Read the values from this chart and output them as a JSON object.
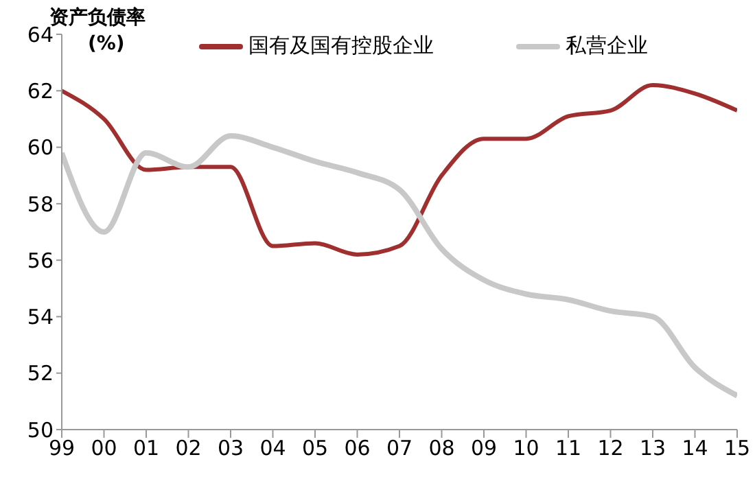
{
  "chart_data": {
    "type": "line",
    "ylabel": "资产负债率\n(%)",
    "categories": [
      "99",
      "00",
      "01",
      "02",
      "03",
      "04",
      "05",
      "06",
      "07",
      "08",
      "09",
      "10",
      "11",
      "12",
      "13",
      "14",
      "15"
    ],
    "series": [
      {
        "name": "国有及国有控股企业",
        "color": "#a0302f",
        "values": [
          62.0,
          61.0,
          59.2,
          59.3,
          59.3,
          56.5,
          56.6,
          56.2,
          56.5,
          59.0,
          60.3,
          60.3,
          61.1,
          61.3,
          62.2,
          61.9,
          61.3
        ]
      },
      {
        "name": "私营企业",
        "color": "#c8c8c8",
        "values": [
          59.8,
          57.0,
          59.8,
          59.3,
          60.4,
          60.0,
          59.5,
          59.1,
          58.5,
          56.4,
          55.3,
          54.8,
          54.6,
          54.2,
          54.0,
          52.2,
          51.2
        ]
      }
    ],
    "ylim": [
      50,
      64
    ],
    "yticks": [
      50,
      52,
      54,
      56,
      58,
      60,
      62,
      64
    ],
    "grid": false,
    "legend": "top",
    "marker": "none",
    "line_style": "solid"
  }
}
